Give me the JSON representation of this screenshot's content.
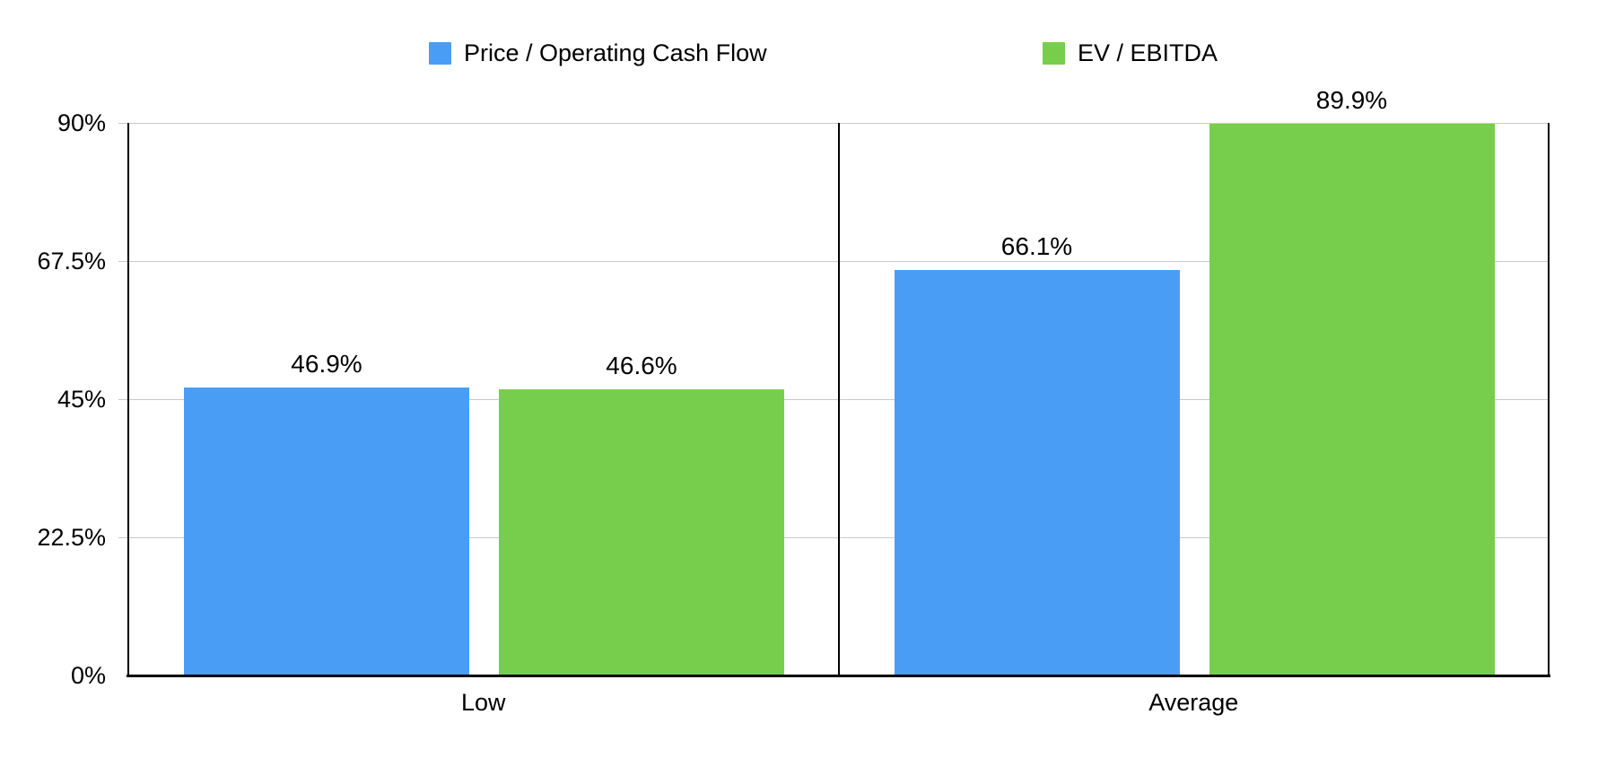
{
  "legend": {
    "items": [
      {
        "label": "Price / Operating Cash Flow",
        "color": "#4A9DF4"
      },
      {
        "label": "EV / EBITDA",
        "color": "#77CE4D"
      }
    ]
  },
  "chart_data": {
    "type": "bar",
    "categories": [
      "Low",
      "Average"
    ],
    "series": [
      {
        "name": "Price / Operating Cash Flow",
        "color": "#4A9DF4",
        "values": [
          46.9,
          66.1
        ]
      },
      {
        "name": "EV / EBITDA",
        "color": "#77CE4D",
        "values": [
          46.6,
          89.9
        ]
      }
    ],
    "value_labels": [
      [
        "46.9%",
        "46.6%"
      ],
      [
        "66.1%",
        "89.9%"
      ]
    ],
    "yticks": [
      "0%",
      "22.5%",
      "45%",
      "67.5%",
      "90%"
    ],
    "ylim": [
      0,
      90
    ],
    "grid": true,
    "legend_position": "top",
    "axis_color": "#000000",
    "gridline_color": "#c9c9c9",
    "background": "#ffffff"
  }
}
